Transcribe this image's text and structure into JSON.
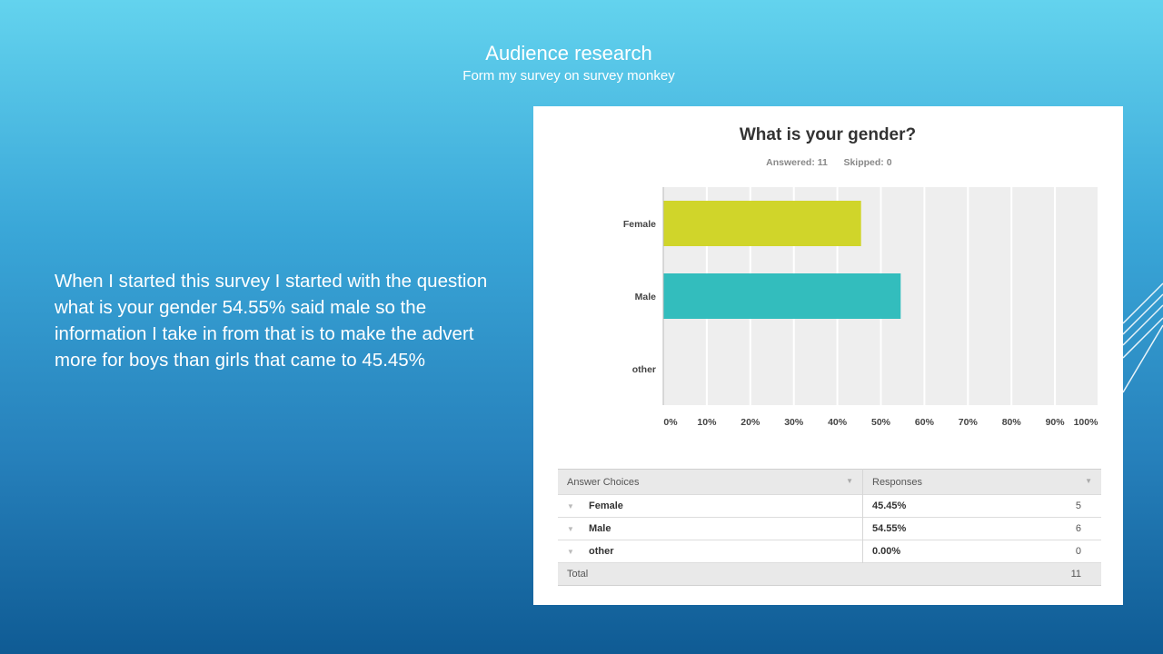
{
  "slide": {
    "title": "Audience research",
    "subtitle": "Form my survey on survey monkey",
    "body": "When I started this survey I started with the question what is your gender 54.55% said male so the information I take in from that is to make the advert more for boys than girls that came to 45.45%"
  },
  "chart_data": {
    "type": "bar",
    "orientation": "horizontal",
    "title": "What is your gender?",
    "answered_text": "Answered: 11",
    "skipped_text": "Skipped: 0",
    "categories": [
      "Female",
      "Male",
      "other"
    ],
    "values": [
      45.45,
      54.55,
      0
    ],
    "colors": [
      "#d0d52a",
      "#33bdbd",
      "#cccccc"
    ],
    "xlim": [
      0,
      100
    ],
    "x_ticks": [
      "0%",
      "10%",
      "20%",
      "30%",
      "40%",
      "50%",
      "60%",
      "70%",
      "80%",
      "90%",
      "100%"
    ],
    "grid": true
  },
  "table": {
    "headers": [
      "Answer Choices",
      "Responses"
    ],
    "rows": [
      {
        "choice": "Female",
        "percent": "45.45%",
        "count": "5"
      },
      {
        "choice": "Male",
        "percent": "54.55%",
        "count": "6"
      },
      {
        "choice": "other",
        "percent": "0.00%",
        "count": "0"
      }
    ],
    "total_label": "Total",
    "total_value": "11"
  },
  "icons": {
    "row_expand": "chevron-down-icon",
    "sort": "sort-caret-icon"
  }
}
